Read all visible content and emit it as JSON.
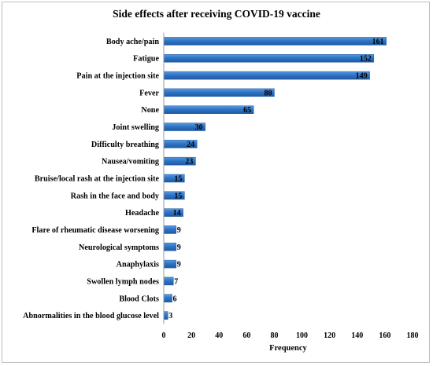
{
  "chart_data": {
    "type": "bar",
    "orientation": "horizontal",
    "title": "Side effects after receiving COVID-19 vaccine",
    "xlabel": "Frequency",
    "ylabel": "",
    "xlim": [
      0,
      180
    ],
    "xticks": [
      0,
      20,
      40,
      60,
      80,
      100,
      120,
      140,
      160,
      180
    ],
    "grid": false,
    "legend": "none",
    "bar_color": "#2e75c6",
    "categories": [
      "Body ache/pain",
      "Fatigue",
      "Pain at the injection site",
      "Fever",
      "None",
      "Joint swelling",
      "Difficulty breathing",
      "Nausea/vomiting",
      "Bruise/local rash at the injection site",
      "Rash in the face and body",
      "Headache",
      "Flare of rheumatic disease worsening",
      "Neurological symptoms",
      "Anaphylaxis",
      "Swollen lymph nodes",
      "Blood Clots",
      "Abnormalities in the blood glucose level"
    ],
    "values": [
      161,
      152,
      149,
      80,
      65,
      30,
      24,
      23,
      15,
      15,
      14,
      9,
      9,
      9,
      7,
      6,
      3
    ]
  }
}
